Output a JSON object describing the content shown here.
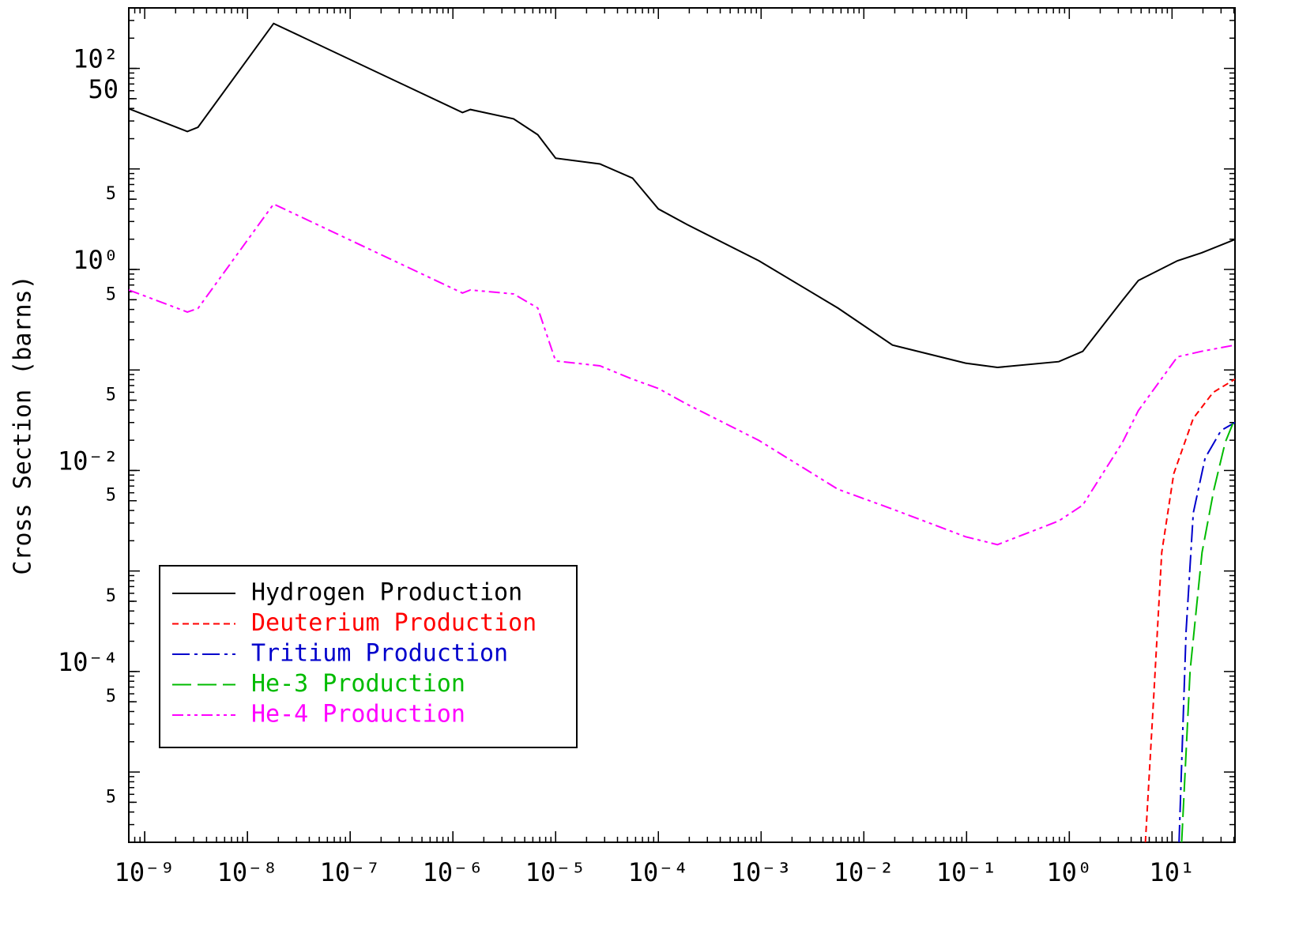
{
  "chart_data": {
    "type": "line",
    "ylabel": "Cross Section (barns)",
    "xscale": "log",
    "yscale": "log",
    "xlim": [
      7e-10,
      41
    ],
    "ylim": [
      2e-06,
      400
    ],
    "minor_ticks": true,
    "legend": "lower left",
    "xticks": [
      {
        "value": 1e-09,
        "label": "10⁻⁹"
      },
      {
        "value": 1e-08,
        "label": "10⁻⁸"
      },
      {
        "value": 1e-07,
        "label": "10⁻⁷"
      },
      {
        "value": 1e-06,
        "label": "10⁻⁶"
      },
      {
        "value": 1e-05,
        "label": "10⁻⁵"
      },
      {
        "value": 0.0001,
        "label": "10⁻⁴"
      },
      {
        "value": 0.001,
        "label": "10⁻³"
      },
      {
        "value": 0.01,
        "label": "10⁻²"
      },
      {
        "value": 0.1,
        "label": "10⁻¹"
      },
      {
        "value": 1,
        "label": "10⁰"
      },
      {
        "value": 10,
        "label": "10¹"
      }
    ],
    "yticks": [
      {
        "value": 100,
        "label": "10²"
      },
      50,
      {
        "value": 5,
        "label": "5"
      },
      {
        "value": 1,
        "label": "10⁰"
      },
      {
        "value": 0.5,
        "label": "5"
      },
      {
        "value": 0.05,
        "label": "5"
      },
      {
        "value": 0.01,
        "label": "10⁻²"
      },
      {
        "value": 0.005,
        "label": "5"
      },
      {
        "value": 0.0005,
        "label": "5"
      },
      {
        "value": 0.0001,
        "label": "10⁻⁴"
      },
      {
        "value": 5e-05,
        "label": "5"
      },
      {
        "value": 5e-06,
        "label": "5"
      }
    ],
    "series": [
      {
        "name": "Hydrogen Production",
        "color": "#000000",
        "dash": "solid",
        "x": [
          7e-10,
          2.6e-09,
          3.3e-09,
          1.8e-08,
          1.24e-06,
          1.48e-06,
          3.9e-06,
          6.7e-06,
          1e-05,
          2.7e-05,
          5.6e-05,
          0.0001,
          0.00019,
          0.00095,
          0.0056,
          0.019,
          0.098,
          0.2,
          0.79,
          1.35,
          3.3,
          4.7,
          11.3,
          19.3,
          41
        ],
        "values": [
          39.8,
          23.6,
          26,
          280,
          36.4,
          39,
          31.5,
          21.9,
          12.8,
          11.2,
          8.1,
          4.0,
          2.8,
          1.22,
          0.413,
          0.177,
          0.117,
          0.106,
          0.121,
          0.153,
          0.494,
          0.776,
          1.22,
          1.46,
          1.99
        ]
      },
      {
        "name": "Deuterium Production",
        "color": "#ff0000",
        "dash": "dashed",
        "x": [
          5.5,
          6.65,
          7.94,
          10.4,
          16.1,
          25.1,
          41
        ],
        "values": [
          2e-06,
          5.9e-05,
          0.00153,
          0.0093,
          0.033,
          0.0597,
          0.081
        ]
      },
      {
        "name": "Tritium Production",
        "color": "#0000cc",
        "dash": "dashdot",
        "x": [
          11.7,
          13.7,
          16.1,
          21,
          30,
          41
        ],
        "values": [
          2e-06,
          0.00025,
          0.00377,
          0.0133,
          0.025,
          0.03
        ]
      },
      {
        "name": "He-3 Production",
        "color": "#00bb00",
        "dash": "longdash",
        "x": [
          12.4,
          15,
          19.6,
          25.6,
          33,
          41
        ],
        "values": [
          2e-06,
          0.000102,
          0.00153,
          0.0065,
          0.0191,
          0.033
        ]
      },
      {
        "name": "He-4 Production",
        "color": "#ff00ff",
        "dash": "dashdotdot",
        "x": [
          7e-10,
          2.6e-09,
          3.3e-09,
          1.8e-08,
          1.24e-06,
          1.48e-06,
          3.9e-06,
          6.7e-06,
          1e-05,
          2.7e-05,
          5.6e-05,
          0.0001,
          0.00019,
          0.00095,
          0.0056,
          0.019,
          0.098,
          0.2,
          0.79,
          1.35,
          3.3,
          4.7,
          11.3,
          19.3,
          41
        ],
        "values": [
          0.625,
          0.377,
          0.41,
          4.48,
          0.582,
          0.625,
          0.571,
          0.413,
          0.123,
          0.11,
          0.081,
          0.0655,
          0.0456,
          0.0199,
          0.0065,
          0.00413,
          0.00219,
          0.00183,
          0.00315,
          0.00452,
          0.0191,
          0.0394,
          0.135,
          0.153,
          0.177
        ]
      }
    ]
  }
}
